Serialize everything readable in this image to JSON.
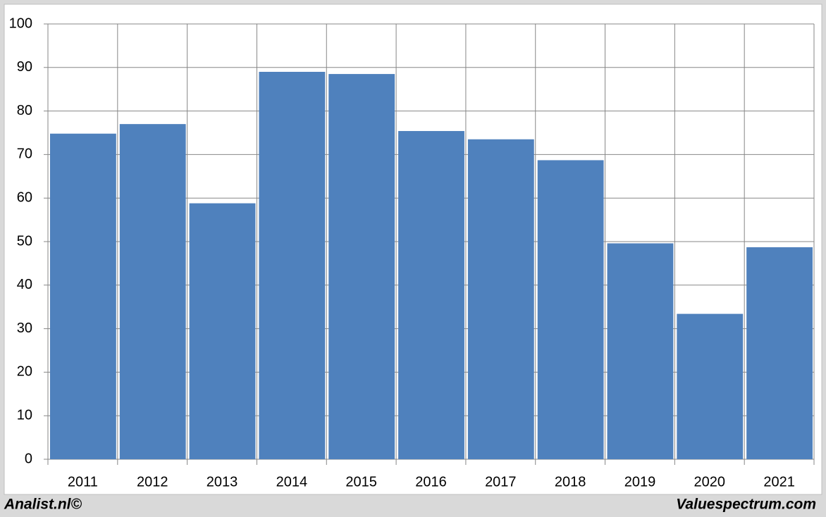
{
  "chart_data": {
    "type": "bar",
    "categories": [
      "2011",
      "2012",
      "2013",
      "2014",
      "2015",
      "2016",
      "2017",
      "2018",
      "2019",
      "2020",
      "2021"
    ],
    "values": [
      74.8,
      77,
      58.8,
      89,
      88.5,
      75.4,
      73.5,
      68.7,
      49.6,
      33.4,
      48.7
    ],
    "color": "#4f81bd",
    "ylim": [
      0,
      100
    ],
    "yticks": [
      0,
      10,
      20,
      30,
      40,
      50,
      60,
      70,
      80,
      90,
      100
    ],
    "grid": true,
    "annotations": [
      "Analist.nl©",
      "Valuespectrum.com"
    ]
  }
}
